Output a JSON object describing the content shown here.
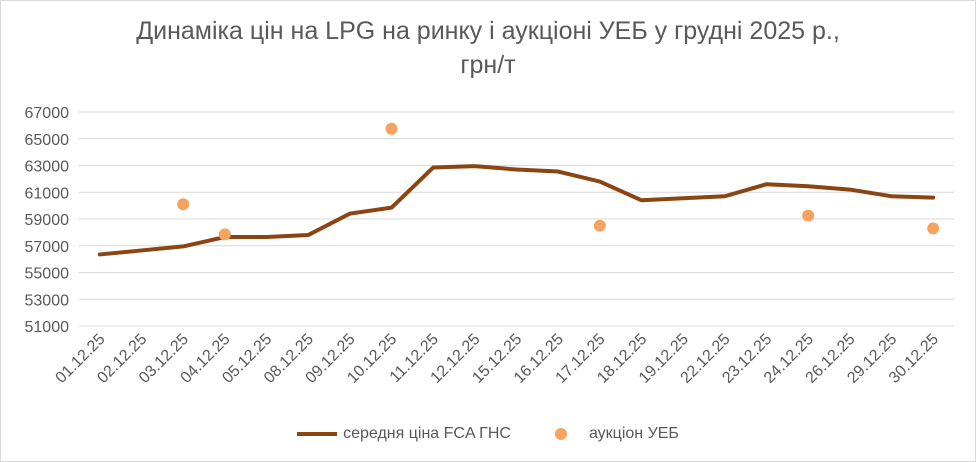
{
  "colors": {
    "line": "#8B4513",
    "dots": "#F4A460",
    "grid": "#d9d9d9",
    "text": "#595959"
  },
  "chart_data": {
    "type": "line",
    "title_line1": "Динаміка цін на LPG на ринку і аукціоні УЕБ у грудні 2025 р.,",
    "title_line2": "грн/т",
    "categories": [
      "01.12.25",
      "02.12.25",
      "03.12.25",
      "04.12.25",
      "05.12.25",
      "08.12.25",
      "09.12.25",
      "10.12.25",
      "11.12.25",
      "12.12.25",
      "15.12.25",
      "16.12.25",
      "17.12.25",
      "18.12.25",
      "19.12.25",
      "22.12.25",
      "23.12.25",
      "24.12.25",
      "26.12.25",
      "29.12.25",
      "30.12.25"
    ],
    "ylim": [
      51000,
      67000
    ],
    "yticks": [
      51000,
      53000,
      55000,
      57000,
      59000,
      61000,
      63000,
      65000,
      67000
    ],
    "grid": true,
    "legend_position": "bottom",
    "series": [
      {
        "name": "середня ціна FCA ГНС",
        "kind": "line",
        "values": [
          56350,
          56650,
          56950,
          57650,
          57650,
          57800,
          59400,
          59850,
          62850,
          62950,
          62700,
          62550,
          61800,
          60400,
          60550,
          60700,
          61600,
          61450,
          61200,
          60700,
          60600
        ]
      },
      {
        "name": "аукціон УЕБ",
        "kind": "scatter",
        "values": [
          null,
          null,
          60100,
          57850,
          null,
          null,
          null,
          65750,
          null,
          null,
          null,
          null,
          58500,
          null,
          null,
          null,
          null,
          59250,
          null,
          null,
          58300
        ]
      }
    ]
  }
}
